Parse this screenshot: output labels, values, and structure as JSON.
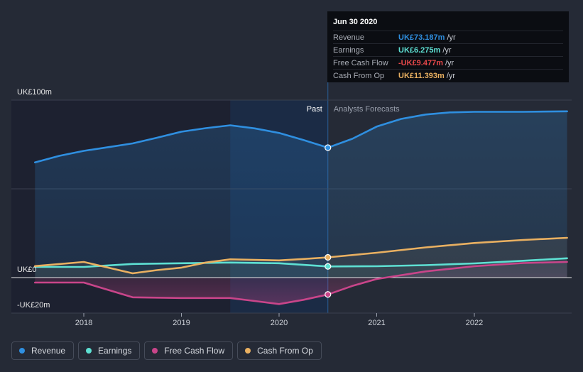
{
  "chart_data": {
    "type": "line",
    "title": "",
    "xlabel": "",
    "ylabel": "",
    "ylim": [
      -20,
      100
    ],
    "x_tick_labels": [
      "2018",
      "2019",
      "2020",
      "2021",
      "2022"
    ],
    "y_tick_labels": [
      "UK£100m",
      "UK£0",
      "-UK£20m"
    ],
    "annotations": {
      "past": "Past",
      "forecast": "Analysts Forecasts"
    },
    "past_range": [
      2017.25,
      2020.5
    ],
    "highlight_range": [
      2019.5,
      2020.5
    ],
    "x_range": [
      2017.25,
      2022.95
    ],
    "series": [
      {
        "name": "Revenue",
        "color": "#2f8fe0",
        "x": [
          2017.5,
          2017.75,
          2018.0,
          2018.25,
          2018.5,
          2018.75,
          2019.0,
          2019.25,
          2019.5,
          2019.75,
          2020.0,
          2020.25,
          2020.5,
          2020.75,
          2021.0,
          2021.25,
          2021.5,
          2021.75,
          2022.0,
          2022.5,
          2022.95
        ],
        "values": [
          64.9,
          68.6,
          71.4,
          73.5,
          75.6,
          78.8,
          82.2,
          84.2,
          85.8,
          84.1,
          81.5,
          77.5,
          73.2,
          78.2,
          85.1,
          89.4,
          91.9,
          93.1,
          93.4,
          93.4,
          93.7
        ]
      },
      {
        "name": "Earnings",
        "color": "#5ee0d3",
        "x": [
          2017.5,
          2018.0,
          2018.5,
          2019.0,
          2019.5,
          2020.0,
          2020.5,
          2021.0,
          2021.5,
          2022.0,
          2022.5,
          2022.95
        ],
        "values": [
          6.0,
          6.0,
          7.7,
          8.1,
          8.5,
          8.1,
          6.3,
          6.4,
          7.0,
          8.0,
          9.5,
          10.9
        ]
      },
      {
        "name": "Free Cash Flow",
        "color": "#c9458a",
        "x": [
          2017.5,
          2018.0,
          2018.5,
          2019.0,
          2019.5,
          2019.75,
          2020.0,
          2020.25,
          2020.5,
          2020.75,
          2021.0,
          2021.5,
          2022.0,
          2022.5,
          2022.95
        ],
        "values": [
          -2.8,
          -2.8,
          -11.1,
          -11.5,
          -11.5,
          -13.2,
          -14.9,
          -12.5,
          -9.5,
          -4.7,
          -0.8,
          3.5,
          6.4,
          8.2,
          8.8
        ]
      },
      {
        "name": "Cash From Op",
        "color": "#e9b061",
        "x": [
          2017.5,
          2018.0,
          2018.5,
          2018.75,
          2019.0,
          2019.25,
          2019.5,
          2020.0,
          2020.25,
          2020.5,
          2021.0,
          2021.5,
          2022.0,
          2022.5,
          2022.95
        ],
        "values": [
          6.5,
          8.8,
          2.4,
          4.2,
          5.6,
          8.5,
          10.3,
          9.7,
          10.5,
          11.4,
          14.0,
          17.0,
          19.5,
          21.2,
          22.4
        ]
      }
    ]
  },
  "tooltip": {
    "date": "Jun 30 2020",
    "rows": [
      {
        "label": "Revenue",
        "value": "UK£73.187m",
        "unit": "/yr",
        "color": "#2f8fe0"
      },
      {
        "label": "Earnings",
        "value": "UK£6.275m",
        "unit": "/yr",
        "color": "#5ee0d3"
      },
      {
        "label": "Free Cash Flow",
        "value": "-UK£9.477m",
        "unit": "/yr",
        "color": "#e8484a"
      },
      {
        "label": "Cash From Op",
        "value": "UK£11.393m",
        "unit": "/yr",
        "color": "#e9b061"
      }
    ]
  },
  "legend": [
    {
      "label": "Revenue",
      "color": "#2f8fe0"
    },
    {
      "label": "Earnings",
      "color": "#5ee0d3"
    },
    {
      "label": "Free Cash Flow",
      "color": "#c9458a"
    },
    {
      "label": "Cash From Op",
      "color": "#e9b061"
    }
  ]
}
